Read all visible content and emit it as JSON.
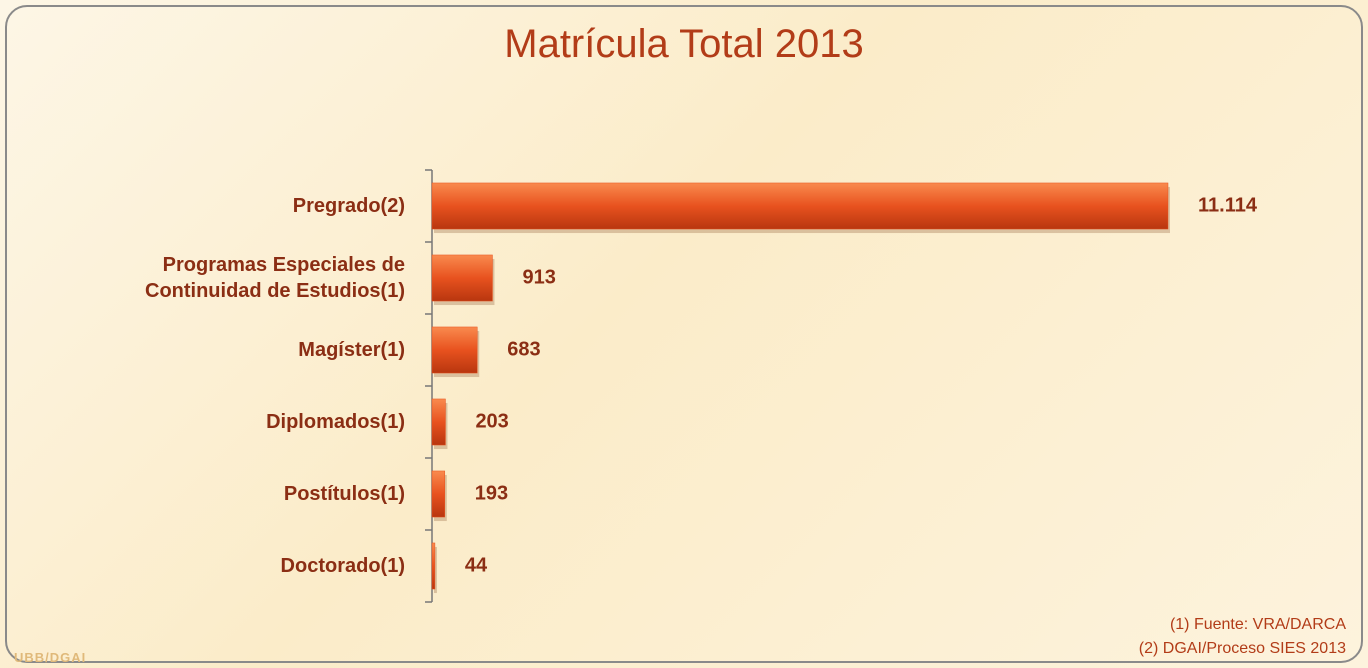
{
  "chart_data": {
    "type": "bar",
    "orientation": "horizontal",
    "title": "Matrícula Total 2013",
    "categories": [
      "Pregrado(2)",
      "Programas Especiales de Continuidad de Estudios(1)",
      "Magíster(1)",
      "Diplomados(1)",
      "Postítulos(1)",
      "Doctorado(1)"
    ],
    "values": [
      11114,
      913,
      683,
      203,
      193,
      44
    ],
    "value_labels": [
      "11.114",
      "913",
      "683",
      "203",
      "193",
      "44"
    ],
    "color": "#e8521f",
    "notes": [
      "(1) Fuente: VRA/DARCA",
      "(2) DGAI/Proceso SIES 2013"
    ],
    "logo": "UBB/DGAI"
  }
}
